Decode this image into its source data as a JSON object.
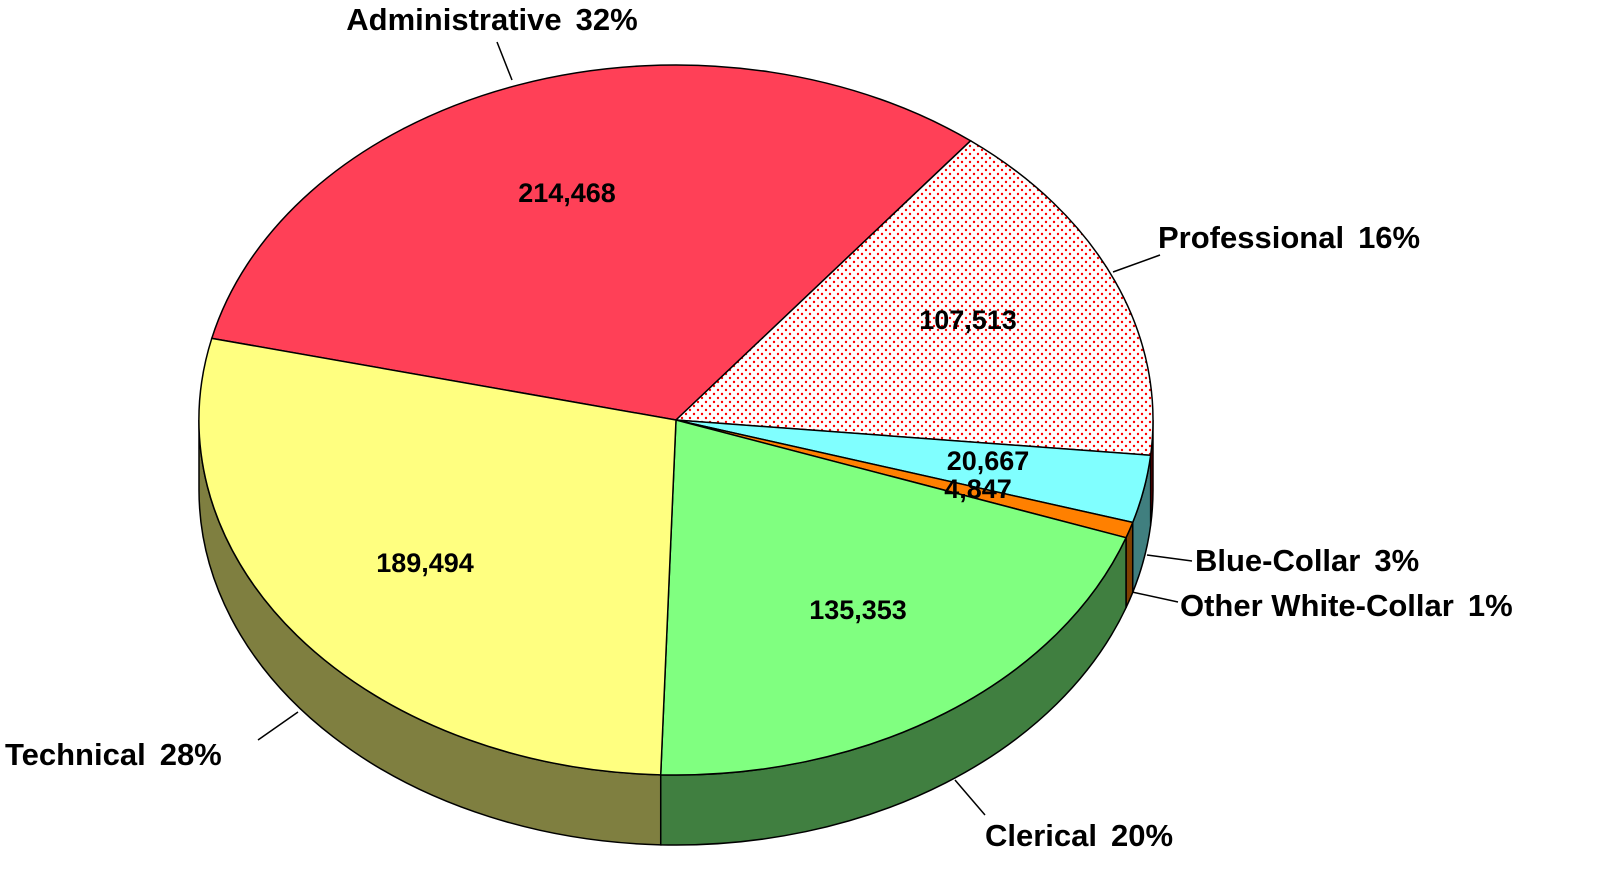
{
  "chart_data": {
    "type": "pie3d",
    "categories": [
      "Administrative",
      "Professional",
      "Blue-Collar",
      "Other White-Collar",
      "Clerical",
      "Technical"
    ],
    "values": [
      214468,
      107513,
      20667,
      4847,
      135353,
      189494
    ],
    "value_labels": [
      "214,468",
      "107,513",
      "20,667",
      "4,847",
      "135,353",
      "189,494"
    ],
    "percent_labels": [
      "32%",
      "16%",
      "3%",
      "1%",
      "20%",
      "28%"
    ],
    "colors": [
      "#ff4057",
      "#ff0000",
      "#80ffff",
      "#ff8000",
      "#80ff80",
      "#ffff80"
    ],
    "fill_patterns": [
      null,
      "dots",
      null,
      null,
      null,
      null
    ]
  }
}
